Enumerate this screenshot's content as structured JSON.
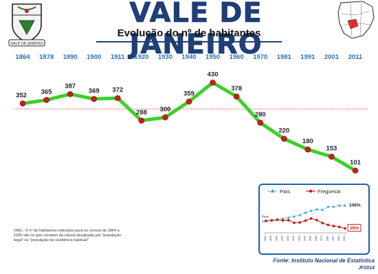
{
  "header": {
    "title": "VALE DE JANEIRO",
    "subtitle": "Evolução do nº de habitantes",
    "shield_text": "VALE DE JANEIRO"
  },
  "colors": {
    "line": "#3ccf2a",
    "marker": "#c81e1e",
    "axis_year": "#2a6fbf",
    "title": "#1f3f7a",
    "map_highlight": "#e32b2b"
  },
  "chart_data": [
    {
      "type": "line",
      "title": "Evolução do nº de habitantes",
      "categories": [
        "1864",
        "1878",
        "1890",
        "1900",
        "1911",
        "1920",
        "1930",
        "1940",
        "1950",
        "1960",
        "1970",
        "1981",
        "1991",
        "2001",
        "2011"
      ],
      "series": [
        {
          "values": [
            352,
            365,
            387,
            369,
            372,
            288,
            300,
            359,
            430,
            378,
            280,
            220,
            180,
            153,
            101
          ]
        }
      ],
      "ylim": [
        60,
        470
      ],
      "reference_line": {
        "style": "dotted",
        "color": "#e03030"
      },
      "grid": false
    },
    {
      "type": "line",
      "categories": [
        "1864",
        "1878",
        "1890",
        "1900",
        "1911",
        "1920",
        "1930",
        "1940",
        "1950",
        "1960",
        "1970",
        "1981",
        "1991",
        "2001",
        "2011"
      ],
      "series": [
        {
          "name": "País",
          "values": [
            100,
            107,
            116,
            122,
            133,
            142,
            155,
            178,
            197,
            209,
            204,
            232,
            234,
            245,
            246
          ]
        },
        {
          "name": "Freguesia",
          "values": [
            100,
            104,
            110,
            105,
            106,
            82,
            85,
            102,
            122,
            107,
            80,
            62,
            51,
            43,
            29
          ]
        }
      ],
      "base_label": "Base",
      "base_value": "100",
      "end_labels": [
        "246%",
        "29%"
      ],
      "legend": "top",
      "ylim": [
        0,
        270
      ],
      "grid": false
    }
  ],
  "footer": {
    "obs": "OBS.: O nº de habitantes indicados para os censos de 1864 a 1930 são os que constam da coluna designada por \"população legal\" ou \"população de residência habitual\"",
    "source": "Fonte: Instituto Nacional de Estatística",
    "credit": "JF2014"
  }
}
